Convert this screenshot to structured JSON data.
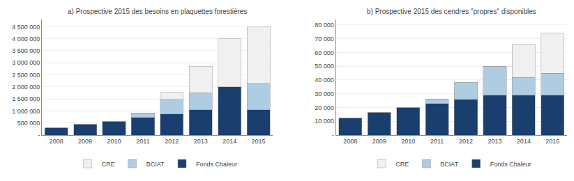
{
  "chart_data": [
    {
      "type": "bar",
      "title": "a) Prospective 2015 des besoins en plaquettes forestières",
      "categories": [
        "2008",
        "2009",
        "2010",
        "2011",
        "2012",
        "2013",
        "2014",
        "2015"
      ],
      "series": [
        {
          "name": "Fonds Chaleur",
          "color": "#1a3f6f",
          "values": [
            300000,
            450000,
            575000,
            725000,
            875000,
            1050000,
            2000000,
            1050000
          ]
        },
        {
          "name": "BCIAT",
          "color": "#aecde3",
          "values": [
            0,
            0,
            0,
            200000,
            600000,
            700000,
            0,
            1100000
          ]
        },
        {
          "name": "CRE",
          "color": "#f0f0f0",
          "values": [
            0,
            0,
            0,
            0,
            300000,
            1100000,
            2000000,
            2350000
          ]
        }
      ],
      "stacked": true,
      "ylim": [
        0,
        4800000
      ],
      "yticks": [
        {
          "value": 0,
          "label": "-"
        },
        {
          "value": 500000,
          "label": "500 000"
        },
        {
          "value": 1000000,
          "label": "1 000 000"
        },
        {
          "value": 1500000,
          "label": "1 500 000"
        },
        {
          "value": 2000000,
          "label": "2 000 000"
        },
        {
          "value": 2500000,
          "label": "2 500 000"
        },
        {
          "value": 3000000,
          "label": "3 000 000"
        },
        {
          "value": 3500000,
          "label": "3 500 000"
        },
        {
          "value": 4000000,
          "label": "4 000 000"
        },
        {
          "value": 4500000,
          "label": "4 500 000"
        }
      ],
      "grid": true,
      "legend": "bottom"
    },
    {
      "type": "bar",
      "title": "b) Prospective 2015 des cendres \"propres\" disponibles",
      "categories": [
        "2008",
        "2009",
        "2010",
        "2011",
        "2012",
        "2013",
        "2014",
        "2015"
      ],
      "series": [
        {
          "name": "Fonds Chaleur",
          "color": "#1a3f6f",
          "values": [
            12500,
            16500,
            20000,
            23000,
            26000,
            29000,
            29000,
            29000
          ]
        },
        {
          "name": "BCIAT",
          "color": "#aecde3",
          "values": [
            0,
            0,
            0,
            3000,
            12000,
            21000,
            13000,
            16000
          ]
        },
        {
          "name": "CRE",
          "color": "#f0f0f0",
          "values": [
            0,
            0,
            0,
            0,
            0,
            0,
            24000,
            29000
          ]
        }
      ],
      "stacked": true,
      "ylim": [
        0,
        84000
      ],
      "yticks": [
        {
          "value": 0,
          "label": "-"
        },
        {
          "value": 10000,
          "label": "10 000"
        },
        {
          "value": 20000,
          "label": "20 000"
        },
        {
          "value": 30000,
          "label": "30 000"
        },
        {
          "value": 40000,
          "label": "40 000"
        },
        {
          "value": 50000,
          "label": "50 000"
        },
        {
          "value": 60000,
          "label": "60 000"
        },
        {
          "value": 70000,
          "label": "70 000"
        },
        {
          "value": 80000,
          "label": "80 000"
        }
      ],
      "grid": true,
      "legend": "bottom"
    }
  ]
}
